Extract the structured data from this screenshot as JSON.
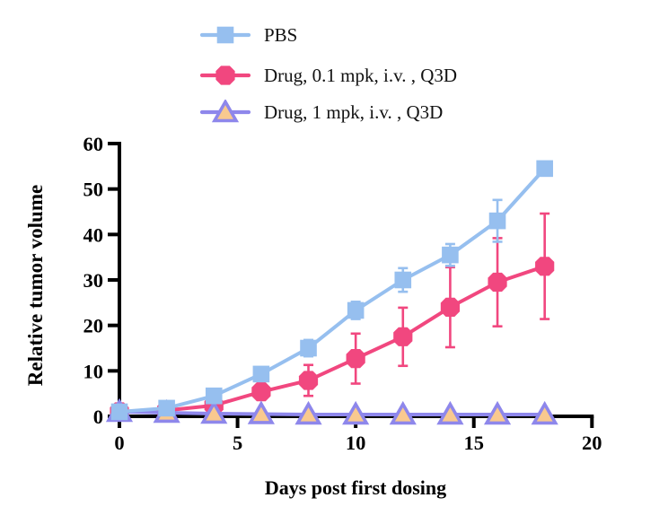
{
  "chart_data": {
    "type": "line",
    "title": "",
    "xlabel": "Days post first dosing",
    "ylabel": "Relative tumor volume",
    "x": [
      0,
      2,
      4,
      6,
      8,
      10,
      12,
      14,
      16,
      18
    ],
    "xlim": [
      0,
      20
    ],
    "ylim": [
      0,
      60
    ],
    "x_ticks": [
      0,
      5,
      10,
      15,
      20
    ],
    "y_ticks": [
      0,
      10,
      20,
      30,
      40,
      50,
      60
    ],
    "grid": false,
    "legend_position": "top-center",
    "axis_color": "#000000",
    "background": "#ffffff",
    "error_bars": "sd, with caps",
    "series": [
      {
        "name": "PBS",
        "marker": "square",
        "color": "#96BFEF",
        "marker_fill": "#96BFEF",
        "values": [
          1,
          1.8,
          4.5,
          9.3,
          15,
          23.3,
          30,
          35.5,
          43,
          54.5
        ],
        "errors": [
          0,
          0,
          0,
          1.5,
          1.8,
          1.9,
          2.6,
          2.4,
          4.6,
          0
        ]
      },
      {
        "name": "Drug, 0.1 mpk, i.v. , Q3D",
        "marker": "hexagon",
        "color": "#F1477F",
        "marker_fill": "#F1477F",
        "values": [
          1,
          1.3,
          2.4,
          5.4,
          7.9,
          12.7,
          17.5,
          24,
          29.5,
          33
        ],
        "errors": [
          0,
          0,
          0.8,
          1.4,
          3.4,
          5.5,
          6.4,
          8.8,
          9.7,
          11.6
        ]
      },
      {
        "name": "Drug, 1 mpk, i.v. , Q3D",
        "marker": "triangle-up",
        "color": "#8E87EB",
        "marker_fill": "#F9C98F",
        "values": [
          1,
          0.8,
          0.6,
          0.5,
          0.4,
          0.4,
          0.4,
          0.4,
          0.4,
          0.4
        ],
        "errors": [
          0,
          0,
          0,
          0,
          0,
          0,
          0,
          0,
          0,
          0
        ]
      }
    ]
  }
}
